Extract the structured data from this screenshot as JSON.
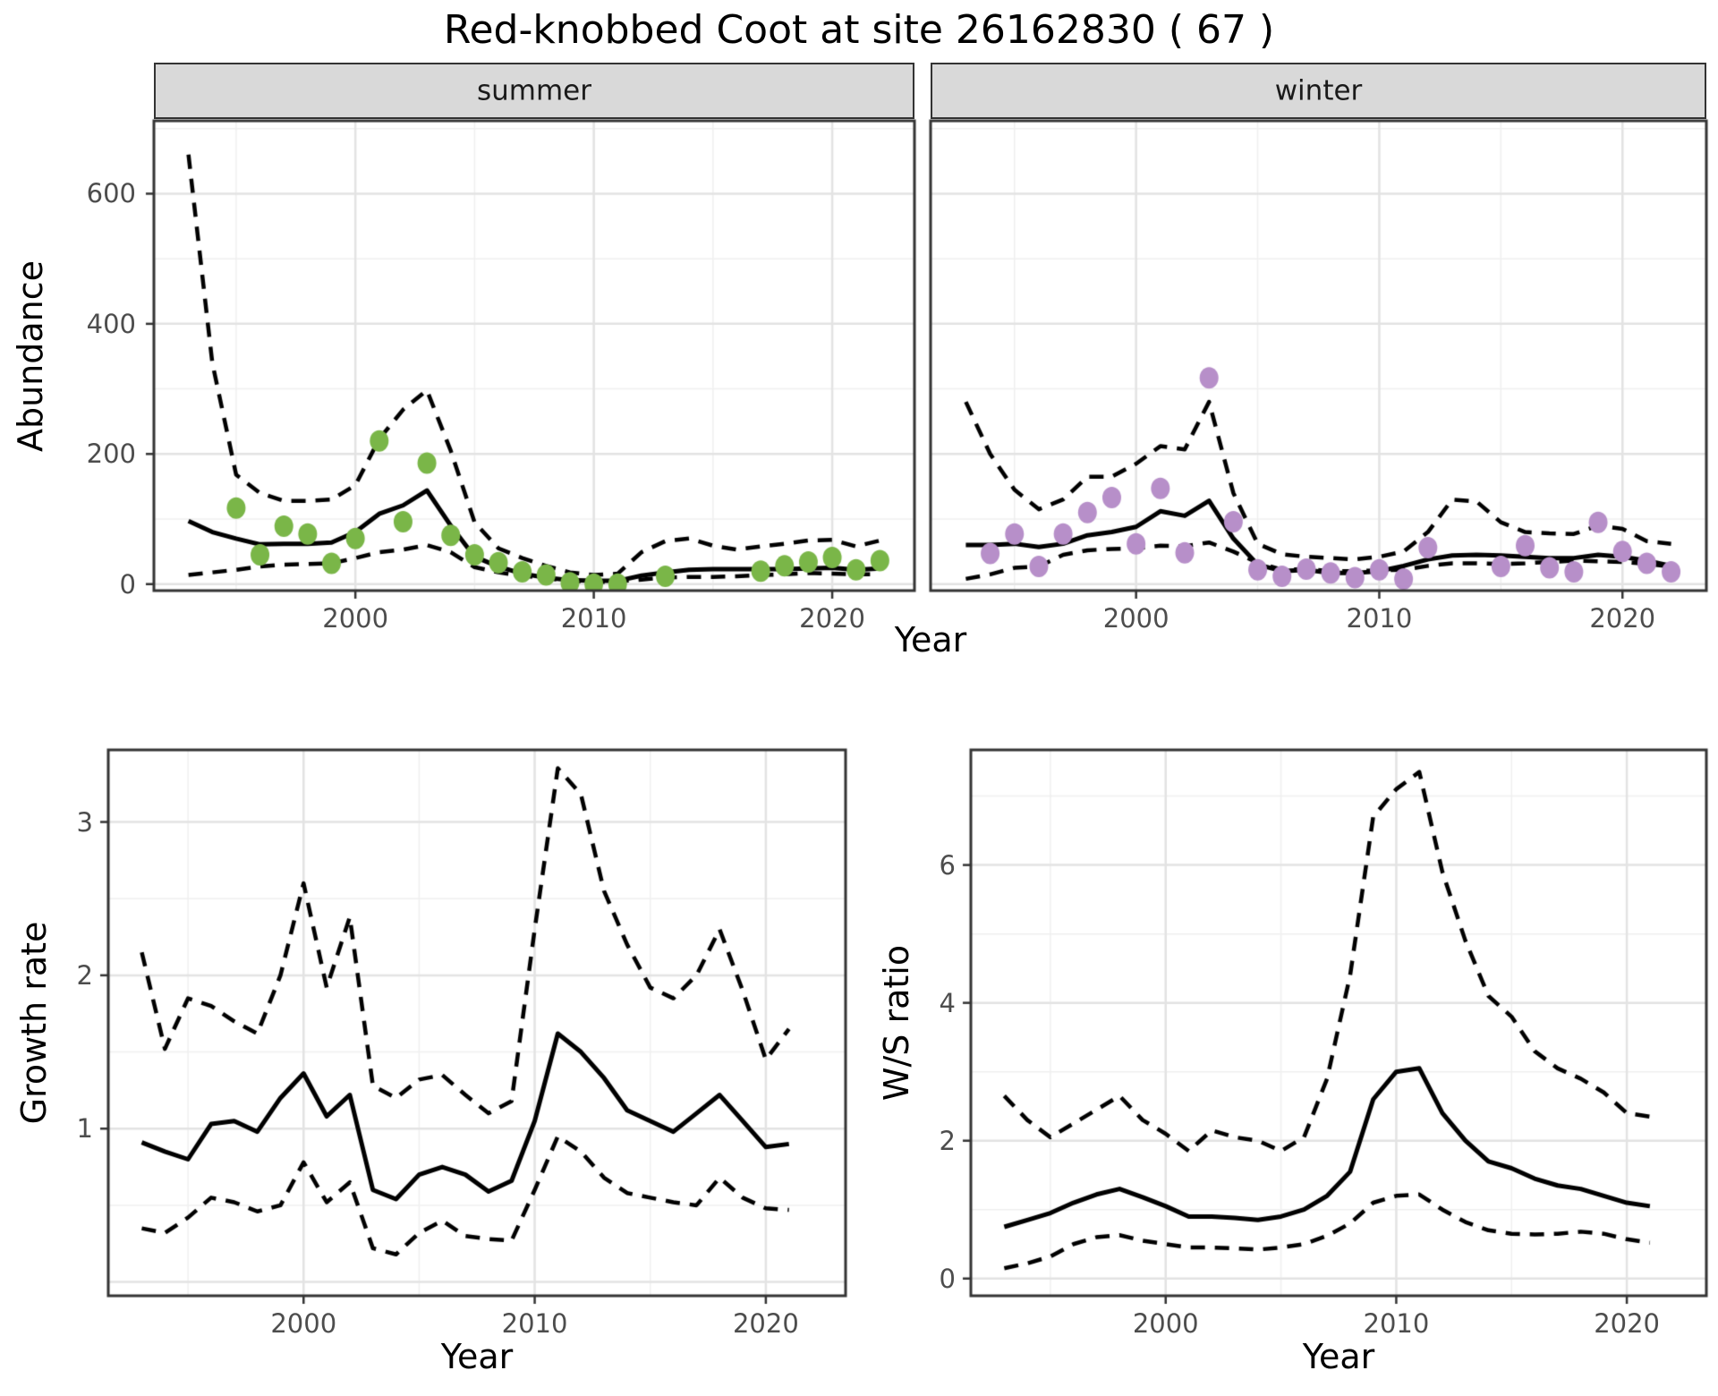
{
  "title": "Red-knobbed Coot at site 26162830 ( 67 )",
  "colors": {
    "fit_line": "#000000",
    "interval_line": "#000000",
    "summer_points": "#7ab648",
    "winter_points": "#b78fc9",
    "grid_major": "#e3e3e3",
    "grid_minor": "#f0f0f0",
    "panel_border": "#333333",
    "strip_background": "#d9d9d9",
    "tick_text": "#4d4d4d"
  },
  "chart_data": [
    {
      "panel": "abundance-summer",
      "type": "line",
      "facet_label": "summer",
      "ylabel": "Abundance",
      "xlabel": "Year",
      "xlim": [
        1991.55,
        2023.45
      ],
      "ylim": [
        -10,
        712
      ],
      "xticks": [
        2000,
        2010,
        2020
      ],
      "xminor": [
        1995,
        2005,
        2015
      ],
      "yticks": [
        0,
        200,
        400,
        600
      ],
      "yminor": [
        100,
        300,
        500,
        700
      ],
      "years": [
        1993,
        1994,
        1995,
        1996,
        1997,
        1998,
        1999,
        2000,
        2001,
        2002,
        2003,
        2004,
        2005,
        2006,
        2007,
        2008,
        2009,
        2010,
        2011,
        2012,
        2013,
        2014,
        2015,
        2016,
        2017,
        2018,
        2019,
        2020,
        2021,
        2022
      ],
      "fit": [
        97,
        80,
        70,
        61,
        62,
        62,
        64,
        80,
        108,
        121,
        144,
        90,
        42,
        27,
        16,
        10,
        6,
        5,
        5,
        13,
        18,
        22,
        23,
        23,
        23,
        23,
        24,
        25,
        22,
        24
      ],
      "upper": [
        660,
        340,
        168,
        140,
        128,
        128,
        130,
        152,
        223,
        268,
        298,
        205,
        95,
        55,
        40,
        28,
        18,
        14,
        16,
        49,
        66,
        70,
        59,
        53,
        58,
        62,
        67,
        68,
        58,
        67
      ],
      "lower": [
        14,
        18,
        22,
        27,
        30,
        31,
        32,
        40,
        49,
        53,
        60,
        49,
        26,
        18,
        13,
        9,
        5,
        3,
        4,
        7,
        10,
        11,
        11,
        12,
        14,
        15,
        17,
        16,
        15,
        15
      ],
      "obs": {
        "years": [
          1995,
          1996,
          1997,
          1998,
          1999,
          2000,
          2001,
          2002,
          2003,
          2004,
          2005,
          2006,
          2007,
          2008,
          2009,
          2010,
          2011,
          2013,
          2017,
          2018,
          2019,
          2020,
          2021,
          2022
        ],
        "values": [
          117,
          45,
          89,
          77,
          32,
          70,
          220,
          96,
          186,
          75,
          45,
          33,
          19,
          14,
          2,
          0,
          0,
          12,
          20,
          28,
          34,
          41,
          22,
          36
        ]
      },
      "obs_color": "#7ab648"
    },
    {
      "panel": "abundance-winter",
      "type": "line",
      "facet_label": "winter",
      "ylabel": "Abundance",
      "xlabel": "Year",
      "xlim": [
        1991.55,
        2023.45
      ],
      "ylim": [
        -10,
        712
      ],
      "xticks": [
        2000,
        2010,
        2020
      ],
      "xminor": [
        1995,
        2005,
        2015
      ],
      "yticks": [],
      "yminor": [
        100,
        300,
        500,
        700
      ],
      "ygrid": [
        0,
        200,
        400,
        600
      ],
      "years": [
        1993,
        1994,
        1995,
        1996,
        1997,
        1998,
        1999,
        2000,
        2001,
        2002,
        2003,
        2004,
        2005,
        2006,
        2007,
        2008,
        2009,
        2010,
        2011,
        2012,
        2013,
        2014,
        2015,
        2016,
        2017,
        2018,
        2019,
        2020,
        2021,
        2022
      ],
      "fit": [
        60,
        60,
        62,
        57,
        62,
        75,
        80,
        88,
        112,
        105,
        128,
        70,
        30,
        20,
        22,
        17,
        17,
        20,
        28,
        38,
        44,
        45,
        44,
        42,
        40,
        40,
        45,
        42,
        36,
        28
      ],
      "upper": [
        280,
        200,
        145,
        115,
        130,
        165,
        165,
        185,
        212,
        207,
        280,
        140,
        62,
        46,
        42,
        40,
        38,
        42,
        50,
        80,
        130,
        127,
        95,
        80,
        78,
        77,
        90,
        85,
        66,
        62
      ],
      "lower": [
        8,
        15,
        25,
        27,
        45,
        52,
        54,
        55,
        59,
        58,
        64,
        50,
        33,
        22,
        23,
        20,
        20,
        21,
        22,
        28,
        32,
        32,
        31,
        32,
        34,
        36,
        35,
        34,
        31,
        27
      ],
      "obs": {
        "years": [
          1994,
          1995,
          1996,
          1997,
          1998,
          1999,
          2000,
          2001,
          2002,
          2003,
          2004,
          2005,
          2006,
          2007,
          2008,
          2009,
          2010,
          2011,
          2012,
          2015,
          2016,
          2017,
          2018,
          2019,
          2020,
          2021,
          2022
        ],
        "values": [
          47,
          77,
          27,
          77,
          110,
          133,
          62,
          147,
          48,
          317,
          96,
          22,
          12,
          23,
          17,
          10,
          22,
          8,
          56,
          27,
          59,
          25,
          19,
          95,
          50,
          32,
          19
        ]
      },
      "obs_color": "#b78fc9"
    },
    {
      "panel": "growth-rate",
      "type": "line",
      "facet_label": "",
      "ylabel": "Growth rate",
      "xlabel": "Year",
      "xlim": [
        1991.55,
        2023.45
      ],
      "ylim": [
        -0.09,
        3.47
      ],
      "xticks": [
        2000,
        2010,
        2020
      ],
      "xminor": [
        1995,
        2005,
        2015
      ],
      "yticks": [
        1,
        2,
        3
      ],
      "ygrid": [
        0,
        1,
        2,
        3
      ],
      "yminor": [
        0.5,
        1.5,
        2.5
      ],
      "years": [
        1993,
        1994,
        1995,
        1996,
        1997,
        1998,
        1999,
        2000,
        2001,
        2002,
        2003,
        2004,
        2005,
        2006,
        2007,
        2008,
        2009,
        2010,
        2011,
        2012,
        2013,
        2014,
        2015,
        2016,
        2017,
        2018,
        2019,
        2020,
        2021
      ],
      "fit": [
        0.91,
        0.85,
        0.8,
        1.03,
        1.05,
        0.98,
        1.2,
        1.36,
        1.08,
        1.22,
        0.6,
        0.54,
        0.7,
        0.75,
        0.7,
        0.59,
        0.66,
        1.05,
        1.62,
        1.5,
        1.33,
        1.12,
        1.05,
        0.98,
        1.1,
        1.22,
        1.05,
        0.88,
        0.9
      ],
      "upper": [
        2.15,
        1.52,
        1.85,
        1.8,
        1.7,
        1.62,
        2.0,
        2.6,
        1.92,
        2.38,
        1.28,
        1.2,
        1.32,
        1.35,
        1.22,
        1.1,
        1.18,
        2.3,
        3.35,
        3.18,
        2.55,
        2.2,
        1.92,
        1.85,
        2.0,
        2.3,
        1.9,
        1.45,
        1.65
      ],
      "lower": [
        0.35,
        0.32,
        0.42,
        0.55,
        0.52,
        0.46,
        0.5,
        0.78,
        0.52,
        0.65,
        0.22,
        0.18,
        0.32,
        0.4,
        0.3,
        0.28,
        0.27,
        0.6,
        0.95,
        0.85,
        0.68,
        0.58,
        0.55,
        0.52,
        0.5,
        0.68,
        0.55,
        0.48,
        0.47
      ]
    },
    {
      "panel": "ws-ratio",
      "type": "line",
      "facet_label": "",
      "ylabel": "W/S ratio",
      "xlabel": "Year",
      "xlim": [
        1991.55,
        2023.45
      ],
      "ylim": [
        -0.25,
        7.67
      ],
      "xticks": [
        2000,
        2010,
        2020
      ],
      "xminor": [
        1995,
        2005,
        2015
      ],
      "yticks": [
        0,
        2,
        4,
        6
      ],
      "ygrid": [
        0,
        2,
        4,
        6
      ],
      "yminor": [
        1,
        3,
        5,
        7
      ],
      "years": [
        1993,
        1994,
        1995,
        1996,
        1997,
        1998,
        1999,
        2000,
        2001,
        2002,
        2003,
        2004,
        2005,
        2006,
        2007,
        2008,
        2009,
        2010,
        2011,
        2012,
        2013,
        2014,
        2015,
        2016,
        2017,
        2018,
        2019,
        2020,
        2021
      ],
      "fit": [
        0.75,
        0.85,
        0.95,
        1.1,
        1.22,
        1.3,
        1.18,
        1.05,
        0.9,
        0.9,
        0.88,
        0.85,
        0.9,
        1.0,
        1.2,
        1.55,
        2.6,
        3.0,
        3.05,
        2.4,
        2.0,
        1.7,
        1.6,
        1.45,
        1.35,
        1.3,
        1.2,
        1.1,
        1.05
      ],
      "upper": [
        2.65,
        2.3,
        2.05,
        2.25,
        2.45,
        2.65,
        2.3,
        2.1,
        1.85,
        2.15,
        2.05,
        2.0,
        1.85,
        2.05,
        2.9,
        4.4,
        6.7,
        7.1,
        7.35,
        5.9,
        4.9,
        4.1,
        3.8,
        3.3,
        3.05,
        2.9,
        2.7,
        2.4,
        2.35
      ],
      "lower": [
        0.15,
        0.22,
        0.32,
        0.5,
        0.6,
        0.63,
        0.55,
        0.5,
        0.45,
        0.45,
        0.44,
        0.42,
        0.45,
        0.5,
        0.62,
        0.8,
        1.1,
        1.2,
        1.22,
        1.0,
        0.82,
        0.7,
        0.65,
        0.64,
        0.65,
        0.68,
        0.65,
        0.57,
        0.52
      ]
    }
  ]
}
